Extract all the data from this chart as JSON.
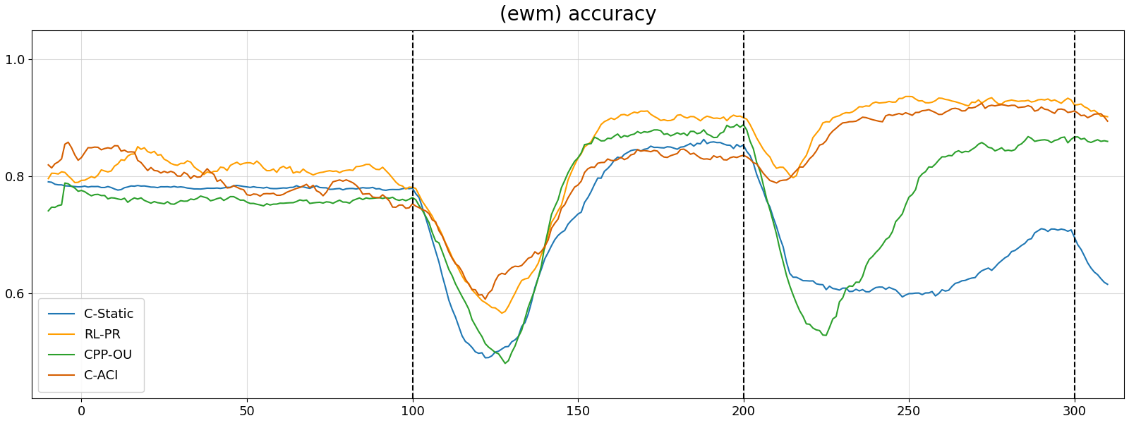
{
  "title": "(ewm) accuracy",
  "title_fontsize": 20,
  "dashed_lines": [
    100,
    200,
    300
  ],
  "xlim": [
    -15,
    315
  ],
  "ylim": [
    0.42,
    1.05
  ],
  "yticks": [
    0.6,
    0.8,
    1.0
  ],
  "xticks": [
    0,
    50,
    100,
    150,
    200,
    250,
    300
  ],
  "legend_labels": [
    "C-Static",
    "RL-PR",
    "CPP-OU",
    "C-ACI"
  ],
  "colors": {
    "C-Static": "#1f77b4",
    "RL-PR": "#ff9e00",
    "CPP-OU": "#2ca02c",
    "C-ACI": "#d55e00"
  },
  "line_width": 1.5,
  "background_color": "#ffffff",
  "grid_color": "#cccccc",
  "grid_alpha": 0.7
}
